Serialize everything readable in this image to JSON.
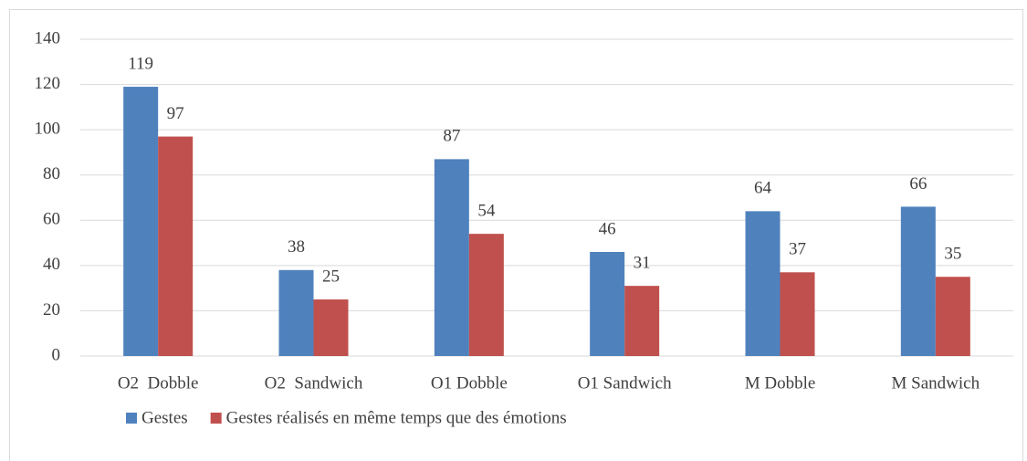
{
  "chart_data": {
    "type": "bar",
    "categories": [
      "O2  Dobble",
      "O2  Sandwich",
      "O1 Dobble",
      "O1 Sandwich",
      "M Dobble",
      "M Sandwich"
    ],
    "series": [
      {
        "name": "Gestes",
        "color": "#4f81bd",
        "values": [
          119,
          38,
          87,
          46,
          64,
          66
        ]
      },
      {
        "name": "Gestes réalisés en même temps que des émotions",
        "color": "#c0504d",
        "values": [
          97,
          25,
          54,
          31,
          37,
          35
        ]
      }
    ],
    "ylim": [
      0,
      140
    ],
    "yticks": [
      0,
      20,
      40,
      60,
      80,
      100,
      120,
      140
    ],
    "grid": true,
    "legend": "bottom"
  }
}
